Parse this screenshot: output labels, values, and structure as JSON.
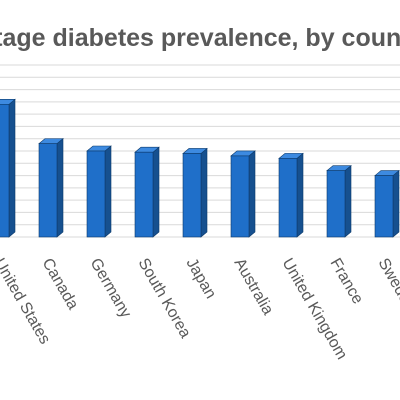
{
  "chart_data": {
    "type": "bar",
    "title": "Percentage diabetes prevalence, by country",
    "categories": [
      "United States",
      "Canada",
      "Germany",
      "South Korea",
      "Japan",
      "Australia",
      "United Kingdom",
      "France",
      "Sweden"
    ],
    "values": [
      10.8,
      7.6,
      7.0,
      6.9,
      6.8,
      6.6,
      6.4,
      5.4,
      5.0
    ],
    "xlabel": "",
    "ylabel": "",
    "ylim": [
      0,
      14
    ],
    "grid": true,
    "legend": "none",
    "bar_style": "3d",
    "colors": {
      "bar_front": "#1f6fc9",
      "bar_side": "#16508f",
      "bar_top": "#3d8ae0",
      "grid": "#d9d9d9",
      "text": "#595959"
    }
  }
}
